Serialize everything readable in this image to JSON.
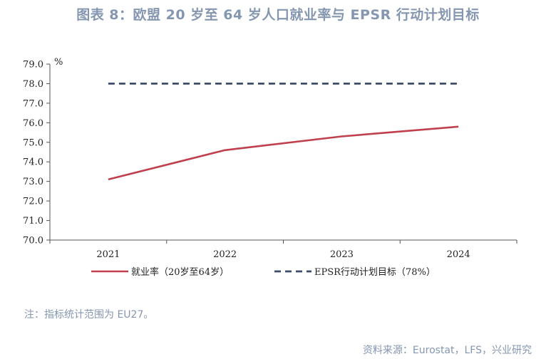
{
  "header": {
    "title": "图表 8：欧盟 20 岁至 64 岁人口就业率与 EPSR 行动计划目标"
  },
  "footer": {
    "note": "注：指标统计范围为 EU27。",
    "source": "资料来源：Eurostat，LFS，兴业研究"
  },
  "colors": {
    "series_main": "#c0404e",
    "series_target": "#3d4c6b",
    "header_text": "#8496b0"
  },
  "chart_data": {
    "type": "line",
    "title": "图表 8：欧盟 20 岁至 64 岁人口就业率与 EPSR 行动计划目标",
    "unit_label": "%",
    "x": [
      "2021",
      "2022",
      "2023",
      "2024"
    ],
    "ylim": [
      70.0,
      79.0
    ],
    "y_ticks": [
      "70.0",
      "71.0",
      "72.0",
      "73.0",
      "74.0",
      "75.0",
      "76.0",
      "77.0",
      "78.0",
      "79.0"
    ],
    "grid": false,
    "legend_position": "bottom",
    "series": [
      {
        "name": "就业率（20岁至64岁）",
        "values": [
          73.1,
          74.6,
          75.3,
          75.8
        ],
        "style": "solid",
        "color": "#c0404e"
      },
      {
        "name": "EPSR行动计划目标（78%）",
        "values": [
          78.0,
          78.0,
          78.0,
          78.0
        ],
        "style": "dashed",
        "color": "#3d4c6b"
      }
    ]
  }
}
